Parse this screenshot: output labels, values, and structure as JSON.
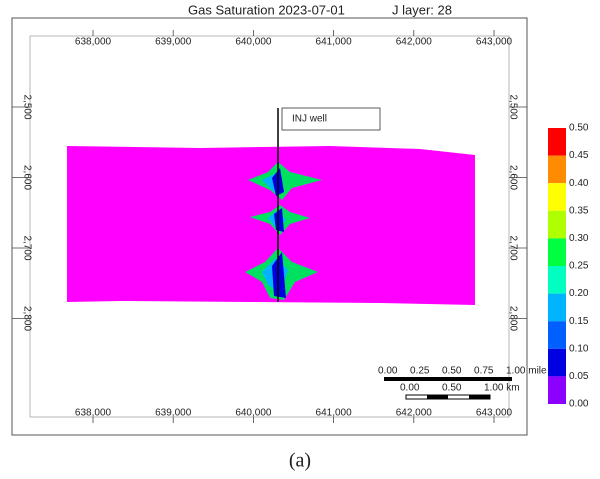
{
  "title": "Gas Saturation 2023-07-01",
  "layer": "J layer: 28",
  "x_ticks": [
    "638,000",
    "639,000",
    "640,000",
    "641,000",
    "642,000",
    "643,000"
  ],
  "y_ticks": [
    "2,500",
    "2,600",
    "2,700",
    "2,800"
  ],
  "annotation": "INJ well",
  "colorbar": {
    "labels": [
      "0.50",
      "0.45",
      "0.40",
      "0.35",
      "0.30",
      "0.25",
      "0.20",
      "0.15",
      "0.10",
      "0.05",
      "0.00"
    ],
    "colors": [
      "#ff0000",
      "#ff8c00",
      "#ffff00",
      "#b0ff00",
      "#00ff40",
      "#00ffc0",
      "#00b4ff",
      "#0060ff",
      "#0000e0",
      "#8c00ff"
    ]
  },
  "scale_bar": {
    "mile_labels": [
      "0.00",
      "0.25",
      "0.50",
      "0.75",
      "1.00 mile"
    ],
    "km_labels": [
      "0.00",
      "0.50",
      "1.00 km"
    ]
  },
  "caption": "(a)"
}
